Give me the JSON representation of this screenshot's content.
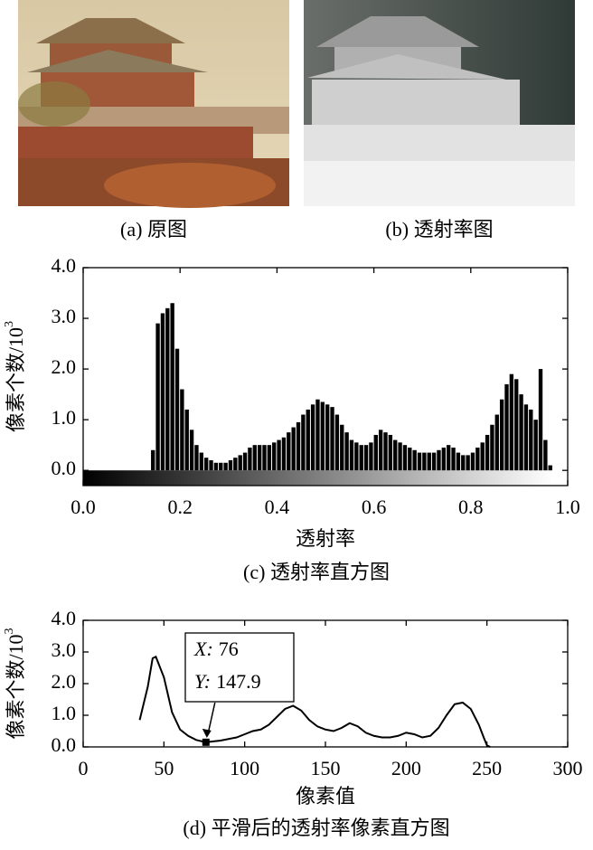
{
  "images": [
    {
      "caption": "(a) 原图"
    },
    {
      "caption": "(b) 透射率图"
    }
  ],
  "chart_data": [
    {
      "type": "histogram",
      "caption": "(c) 透射率直方图",
      "xlabel": "透射率",
      "ylabel": "像素个数/10",
      "ylabel_exponent": "3",
      "color": "#000000",
      "bins": [
        0.14,
        0.15,
        0.16,
        0.17,
        0.18,
        0.19,
        0.2,
        0.21,
        0.22,
        0.23,
        0.24,
        0.25,
        0.26,
        0.27,
        0.28,
        0.29,
        0.3,
        0.31,
        0.32,
        0.33,
        0.34,
        0.35,
        0.36,
        0.37,
        0.38,
        0.39,
        0.4,
        0.41,
        0.42,
        0.43,
        0.44,
        0.45,
        0.46,
        0.47,
        0.48,
        0.49,
        0.5,
        0.51,
        0.52,
        0.53,
        0.54,
        0.55,
        0.56,
        0.57,
        0.58,
        0.59,
        0.6,
        0.61,
        0.62,
        0.63,
        0.64,
        0.65,
        0.66,
        0.67,
        0.68,
        0.69,
        0.7,
        0.71,
        0.72,
        0.73,
        0.74,
        0.75,
        0.76,
        0.77,
        0.78,
        0.79,
        0.8,
        0.81,
        0.82,
        0.83,
        0.84,
        0.85,
        0.86,
        0.87,
        0.88,
        0.89,
        0.9,
        0.91,
        0.92,
        0.93,
        0.94,
        0.95,
        0.96,
        0.97
      ],
      "values": [
        0.4,
        2.9,
        3.1,
        3.2,
        3.3,
        2.4,
        1.6,
        1.2,
        0.8,
        0.5,
        0.35,
        0.25,
        0.2,
        0.15,
        0.15,
        0.15,
        0.2,
        0.25,
        0.3,
        0.35,
        0.45,
        0.5,
        0.5,
        0.5,
        0.5,
        0.55,
        0.6,
        0.65,
        0.75,
        0.85,
        0.95,
        1.1,
        1.2,
        1.3,
        1.4,
        1.35,
        1.3,
        1.25,
        1.1,
        0.9,
        0.75,
        0.6,
        0.55,
        0.5,
        0.5,
        0.55,
        0.7,
        0.8,
        0.75,
        0.7,
        0.6,
        0.55,
        0.5,
        0.45,
        0.4,
        0.35,
        0.35,
        0.35,
        0.35,
        0.4,
        0.45,
        0.5,
        0.45,
        0.35,
        0.3,
        0.3,
        0.35,
        0.45,
        0.55,
        0.7,
        0.9,
        1.1,
        1.4,
        1.7,
        1.9,
        1.8,
        1.5,
        1.3,
        1.2,
        1.0,
        2.0,
        0.6,
        0.1
      ],
      "xlim": [
        0,
        1
      ],
      "ylim": [
        -0.3,
        4
      ],
      "xticks": [
        {
          "value": 0,
          "label": "0.0"
        },
        {
          "value": 0.2,
          "label": "0.2"
        },
        {
          "value": 0.4,
          "label": "0.4"
        },
        {
          "value": 0.6,
          "label": "0.6"
        },
        {
          "value": 0.8,
          "label": "0.8"
        },
        {
          "value": 1,
          "label": "1.0"
        }
      ],
      "yticks": [
        {
          "value": 0,
          "label": "0.0"
        },
        {
          "value": 1,
          "label": "1.0"
        },
        {
          "value": 2,
          "label": "2.0"
        },
        {
          "value": 3,
          "label": "3.0"
        },
        {
          "value": 4,
          "label": "4.0"
        }
      ]
    },
    {
      "type": "line",
      "caption": "(d) 平滑后的透射率像素直方图",
      "xlabel": "像素值",
      "ylabel": "像素个数/10",
      "ylabel_exponent": "3",
      "color": "#000000",
      "x": [
        35,
        40,
        43,
        45,
        50,
        55,
        60,
        65,
        70,
        76,
        80,
        85,
        90,
        95,
        100,
        105,
        110,
        115,
        120,
        125,
        130,
        135,
        140,
        145,
        150,
        155,
        160,
        165,
        170,
        175,
        180,
        185,
        190,
        195,
        200,
        205,
        210,
        215,
        220,
        225,
        230,
        235,
        240,
        245,
        248,
        250,
        252
      ],
      "values": [
        0.85,
        1.9,
        2.8,
        2.85,
        2.2,
        1.1,
        0.55,
        0.35,
        0.22,
        0.1479,
        0.17,
        0.2,
        0.25,
        0.3,
        0.4,
        0.5,
        0.55,
        0.7,
        0.95,
        1.2,
        1.3,
        1.15,
        0.85,
        0.65,
        0.55,
        0.5,
        0.6,
        0.75,
        0.65,
        0.45,
        0.35,
        0.3,
        0.3,
        0.35,
        0.45,
        0.4,
        0.3,
        0.35,
        0.6,
        1.0,
        1.35,
        1.4,
        1.2,
        0.7,
        0.3,
        0.05,
        0
      ],
      "xlim": [
        0,
        300
      ],
      "ylim": [
        0,
        4
      ],
      "xticks": [
        0,
        50,
        100,
        150,
        200,
        250,
        300
      ],
      "yticks": [
        {
          "value": 0,
          "label": "0.0"
        },
        {
          "value": 1,
          "label": "1.0"
        },
        {
          "value": 2,
          "label": "2.0"
        },
        {
          "value": 3,
          "label": "3.0"
        },
        {
          "value": 4,
          "label": "4.0"
        }
      ],
      "annotation": {
        "point_index": 9,
        "x_label": "X:",
        "x_value": 76,
        "y_label": "Y:",
        "y_value": 147.9
      }
    }
  ]
}
